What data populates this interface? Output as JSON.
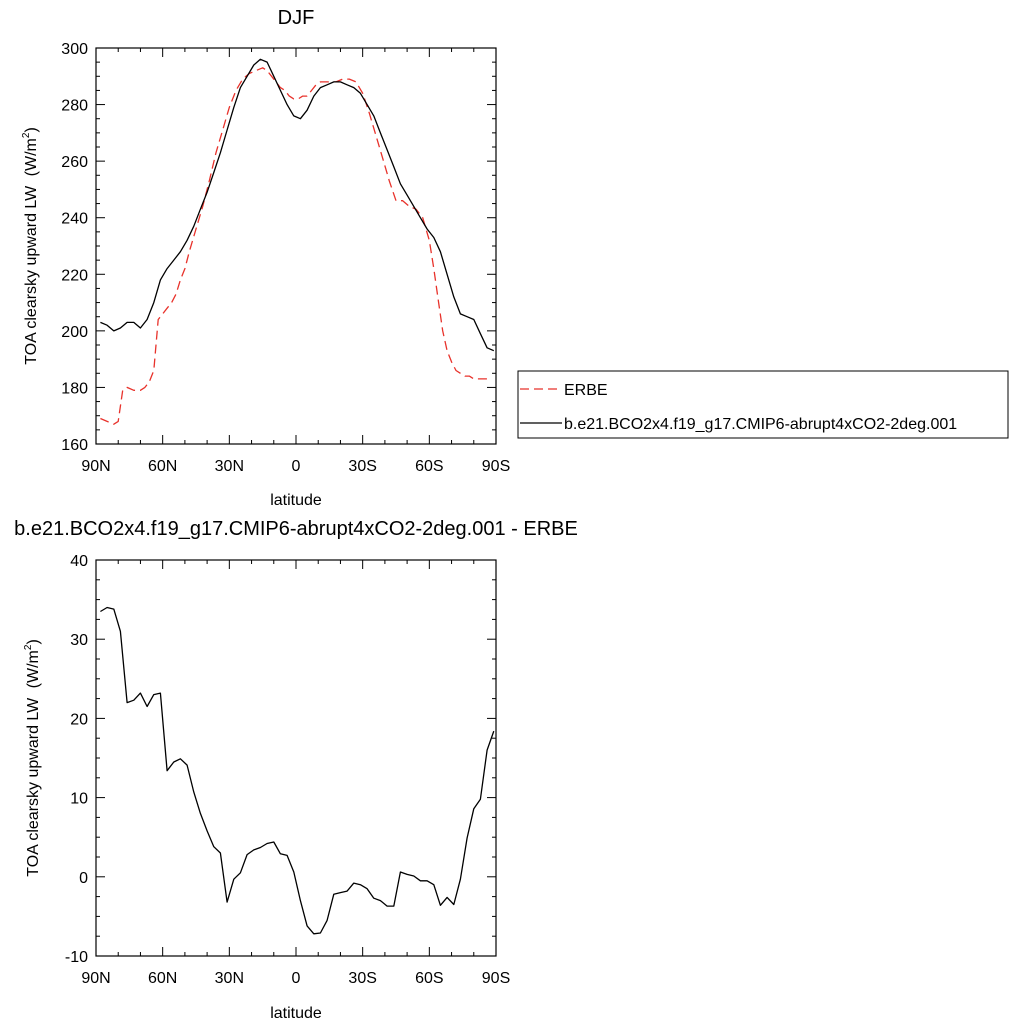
{
  "chart_data": [
    {
      "type": "line",
      "title": "DJF",
      "xlabel": "latitude",
      "ylabel": "TOA clearsky upward LW",
      "ylabel_unit": "(W/m",
      "ylabel_sup": "2",
      "ylabel_close": ")",
      "xlim": [
        -90,
        90
      ],
      "ylim": [
        160,
        300
      ],
      "xticks": [
        {
          "value": -90,
          "label": "90N"
        },
        {
          "value": -60,
          "label": "60N"
        },
        {
          "value": -30,
          "label": "30N"
        },
        {
          "value": 0,
          "label": "0"
        },
        {
          "value": 30,
          "label": "30S"
        },
        {
          "value": 60,
          "label": "60S"
        },
        {
          "value": 90,
          "label": "90S"
        }
      ],
      "yticks": [
        160,
        180,
        200,
        220,
        240,
        260,
        280,
        300
      ],
      "legend_placement": "right",
      "series": [
        {
          "name": "ERBE",
          "color": "#e8322b",
          "dash": "dashed",
          "x": [
            -88,
            -85,
            -82,
            -80,
            -78,
            -76,
            -73,
            -70,
            -68,
            -66,
            -64,
            -62,
            -60,
            -58,
            -56,
            -54,
            -52,
            -50,
            -48,
            -45,
            -42,
            -39,
            -36,
            -33,
            -30,
            -27,
            -24,
            -21,
            -18,
            -15,
            -13,
            -11,
            -9,
            -7,
            -5,
            -3,
            -1,
            1,
            3,
            5,
            7,
            9,
            11,
            13,
            15,
            18,
            21,
            24,
            27,
            30,
            33,
            36,
            39,
            42,
            45,
            48,
            51,
            54,
            57,
            60,
            62,
            64,
            66,
            68,
            70,
            72,
            74,
            76,
            78,
            80,
            82,
            84,
            86,
            88
          ],
          "y": [
            169,
            168,
            167,
            168,
            179,
            180,
            179,
            179,
            180,
            182,
            186,
            204,
            206,
            208,
            210,
            213,
            218,
            222,
            228,
            236,
            244,
            253,
            263,
            271,
            279,
            285,
            289,
            291,
            292,
            293,
            292,
            290,
            288,
            286,
            285,
            283,
            282,
            282,
            283,
            283,
            285,
            287,
            288,
            288,
            288,
            288,
            289,
            289,
            288,
            284,
            277,
            269,
            261,
            253,
            246,
            246,
            244,
            243,
            240,
            232,
            222,
            211,
            200,
            193,
            189,
            186,
            185,
            184,
            184,
            183,
            183,
            183,
            183,
            183
          ]
        },
        {
          "name": "b.e21.BCO2x4.f19_g17.CMIP6-abrupt4xCO2-2deg.001",
          "color": "#000000",
          "dash": "solid",
          "x": [
            -88,
            -85,
            -82,
            -79,
            -76,
            -73,
            -70,
            -67,
            -64,
            -61,
            -58,
            -55,
            -52,
            -49,
            -46,
            -43,
            -40,
            -37,
            -34,
            -31,
            -28,
            -25,
            -22,
            -19,
            -16,
            -13,
            -10,
            -7,
            -4,
            -1,
            2,
            5,
            8,
            11,
            14,
            17,
            20,
            23,
            26,
            29,
            32,
            35,
            38,
            41,
            44,
            47,
            50,
            53,
            56,
            59,
            62,
            65,
            68,
            71,
            74,
            77,
            80,
            83,
            86,
            89
          ],
          "y": [
            203,
            202,
            200,
            201,
            203,
            203,
            201,
            204,
            210,
            218,
            222,
            225,
            228,
            232,
            237,
            243,
            249,
            256,
            263,
            271,
            279,
            286,
            290,
            294,
            296,
            295,
            290,
            285,
            280,
            276,
            275,
            278,
            283,
            286,
            287,
            288,
            288,
            287,
            286,
            284,
            280,
            276,
            270,
            264,
            258,
            252,
            248,
            244,
            240,
            236,
            233,
            228,
            220,
            212,
            206,
            205,
            204,
            199,
            194,
            193
          ]
        }
      ]
    },
    {
      "type": "line",
      "title": "b.e21.BCO2x4.f19_g17.CMIP6-abrupt4xCO2-2deg.001 - ERBE",
      "xlabel": "latitude",
      "ylabel": "TOA clearsky upward LW",
      "ylabel_unit": "(W/m",
      "ylabel_sup": "2",
      "ylabel_close": ")",
      "xlim": [
        -90,
        90
      ],
      "ylim": [
        -10,
        40
      ],
      "xticks": [
        {
          "value": -90,
          "label": "90N"
        },
        {
          "value": -60,
          "label": "60N"
        },
        {
          "value": -30,
          "label": "30N"
        },
        {
          "value": 0,
          "label": "0"
        },
        {
          "value": 30,
          "label": "30S"
        },
        {
          "value": 60,
          "label": "60S"
        },
        {
          "value": 90,
          "label": "90S"
        }
      ],
      "yticks": [
        -10,
        0,
        10,
        20,
        30,
        40
      ],
      "series": [
        {
          "color": "#000000",
          "dash": "solid",
          "x": [
            -88,
            -85,
            -82,
            -79,
            -76,
            -73,
            -70,
            -67,
            -64,
            -61,
            -58,
            -55,
            -52,
            -49,
            -46,
            -43,
            -40,
            -37,
            -34,
            -31,
            -28,
            -25,
            -22,
            -19,
            -16,
            -13,
            -10,
            -7,
            -4,
            -1,
            2,
            5,
            8,
            11,
            14,
            17,
            20,
            23,
            26,
            29,
            32,
            35,
            38,
            41,
            44,
            47,
            50,
            53,
            56,
            59,
            62,
            65,
            68,
            71,
            74,
            77,
            80,
            83,
            86,
            89
          ],
          "y": [
            33.5,
            34,
            33.8,
            31,
            22,
            22.3,
            23.2,
            21.5,
            23,
            23.2,
            13.4,
            14.5,
            14.9,
            14.1,
            10.7,
            8,
            5.8,
            3.8,
            3,
            -3.2,
            -0.3,
            0.5,
            2.8,
            3.4,
            3.7,
            4.2,
            4.4,
            2.9,
            2.7,
            0.6,
            -3,
            -6.2,
            -7.2,
            -7.1,
            -5.5,
            -2.2,
            -2,
            -1.8,
            -0.8,
            -1,
            -1.5,
            -2.7,
            -3,
            -3.7,
            -3.7,
            0.6,
            0.3,
            0.1,
            -0.5,
            -0.5,
            -1,
            -3.6,
            -2.6,
            -3.5,
            -0.3,
            4.9,
            8.6,
            9.8,
            16,
            18.4
          ]
        }
      ]
    }
  ]
}
